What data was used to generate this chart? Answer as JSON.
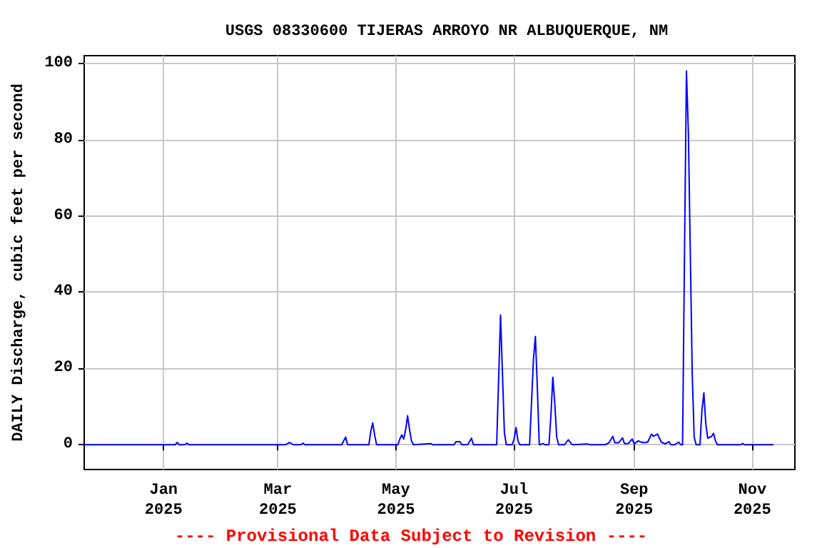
{
  "chart_data": {
    "type": "line",
    "title": "USGS 08330600 TIJERAS ARROYO NR ALBUQUERQUE, NM",
    "ylabel": "DAILY Discharge, cubic feet per second",
    "annotations": [
      "---- Provisional Data Subject to Revision ----"
    ],
    "x": [
      "2024-11-21",
      "2025-01-07",
      "2025-01-08",
      "2025-01-09",
      "2025-01-12",
      "2025-01-13",
      "2025-01-14",
      "2025-03-05",
      "2025-03-07",
      "2025-03-09",
      "2025-03-13",
      "2025-03-14",
      "2025-03-15",
      "2025-04-03",
      "2025-04-05",
      "2025-04-06",
      "2025-04-17",
      "2025-04-18",
      "2025-04-19",
      "2025-04-20",
      "2025-04-21",
      "2025-05-02",
      "2025-05-03",
      "2025-05-04",
      "2025-05-05",
      "2025-05-06",
      "2025-05-07",
      "2025-05-08",
      "2025-05-09",
      "2025-05-10",
      "2025-05-19",
      "2025-05-20",
      "2025-05-31",
      "2025-06-01",
      "2025-06-03",
      "2025-06-04",
      "2025-06-07",
      "2025-06-09",
      "2025-06-10",
      "2025-06-22",
      "2025-06-23",
      "2025-06-24",
      "2025-06-25",
      "2025-06-26",
      "2025-06-27",
      "2025-06-30",
      "2025-07-01",
      "2025-07-02",
      "2025-07-03",
      "2025-07-04",
      "2025-07-09",
      "2025-07-10",
      "2025-07-11",
      "2025-07-12",
      "2025-07-13",
      "2025-07-14",
      "2025-07-16",
      "2025-07-17",
      "2025-07-19",
      "2025-07-20",
      "2025-07-21",
      "2025-07-22",
      "2025-07-23",
      "2025-07-24",
      "2025-07-27",
      "2025-07-29",
      "2025-07-31",
      "2025-08-08",
      "2025-08-09",
      "2025-08-17",
      "2025-08-19",
      "2025-08-21",
      "2025-08-22",
      "2025-08-24",
      "2025-08-26",
      "2025-08-27",
      "2025-08-29",
      "2025-08-31",
      "2025-09-01",
      "2025-09-03",
      "2025-09-04",
      "2025-09-06",
      "2025-09-08",
      "2025-09-10",
      "2025-09-11",
      "2025-09-13",
      "2025-09-15",
      "2025-09-17",
      "2025-09-19",
      "2025-09-20",
      "2025-09-22",
      "2025-09-24",
      "2025-09-25",
      "2025-09-26",
      "2025-09-27",
      "2025-09-28",
      "2025-09-29",
      "2025-09-30",
      "2025-10-01",
      "2025-10-02",
      "2025-10-03",
      "2025-10-05",
      "2025-10-06",
      "2025-10-07",
      "2025-10-08",
      "2025-10-09",
      "2025-10-11",
      "2025-10-12",
      "2025-10-13",
      "2025-10-14",
      "2025-10-26",
      "2025-10-27",
      "2025-10-28",
      "2025-11-12"
    ],
    "series": [
      {
        "color": "#0000ff",
        "values": [
          0,
          0,
          0.6,
          0,
          0,
          0.4,
          0,
          0,
          0.6,
          0,
          0,
          0.4,
          0,
          0,
          2,
          0,
          0,
          3.5,
          5.7,
          2.5,
          0,
          0,
          1.5,
          2.6,
          1.5,
          4,
          7.6,
          4,
          1,
          0,
          0.3,
          0,
          0,
          0.8,
          0.8,
          0,
          0,
          1.7,
          0,
          0,
          17,
          34,
          18.5,
          3,
          0,
          0,
          1.5,
          4.5,
          1,
          0,
          0,
          11,
          22.5,
          28.4,
          15,
          0,
          0.3,
          0,
          0,
          7.5,
          17.7,
          11,
          2,
          0,
          0,
          1.3,
          0,
          0.2,
          0,
          0,
          0.5,
          2.2,
          0.5,
          0.5,
          1.8,
          0.3,
          0.3,
          1.5,
          0.2,
          1,
          0.8,
          0.5,
          0.7,
          2.8,
          2.2,
          2.8,
          0.7,
          0.2,
          0.8,
          0,
          0,
          0.7,
          0,
          0,
          50,
          98,
          82,
          50,
          18.5,
          2,
          0,
          0,
          9,
          13.6,
          5.5,
          1.7,
          2.2,
          3,
          1,
          0,
          0,
          0.3,
          0,
          0
        ]
      }
    ],
    "xlim": [
      "2024-11-21",
      "2025-11-23"
    ],
    "xticks": [
      {
        "value": "2025-01-01",
        "label": "Jan 2025"
      },
      {
        "value": "2025-03-01",
        "label": "Mar 2025"
      },
      {
        "value": "2025-05-01",
        "label": "May 2025"
      },
      {
        "value": "2025-07-01",
        "label": "Jul 2025"
      },
      {
        "value": "2025-09-01",
        "label": "Sep 2025"
      },
      {
        "value": "2025-11-01",
        "label": "Nov 2025"
      }
    ],
    "ylim": [
      -6.5,
      102
    ],
    "yticks": [
      0,
      20,
      40,
      60,
      80,
      100
    ],
    "grid": true,
    "marker": "none",
    "line_style": "solid"
  }
}
